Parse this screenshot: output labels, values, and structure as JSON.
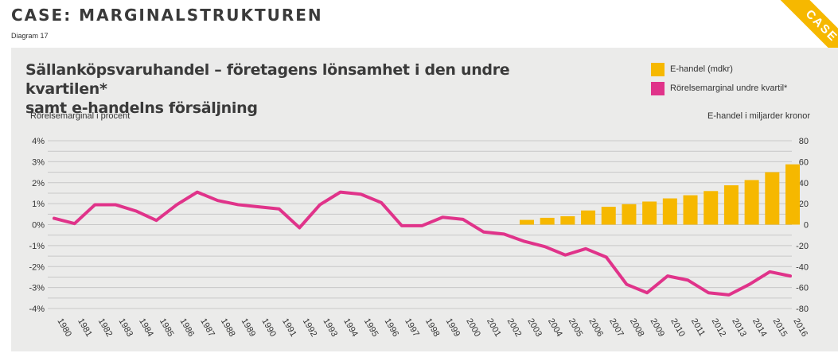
{
  "header": {
    "title": "CASE: MARGINALSTRUKTUREN",
    "diagram_label": "Diagram 17",
    "corner_badge": "CASE"
  },
  "colors": {
    "bar": "#f6b800",
    "line": "#e0338a",
    "grid": "#c8c8c8",
    "panel": "#ebebea",
    "badge": "#f6b800"
  },
  "chart_data": {
    "type": "bar+line",
    "title_line1": "Sällanköpsvaruhandel – företagens lönsamhet i den undre kvartilen*",
    "title_line2": "samt e-handelns försäljning",
    "ylabel_left": "Rörelsemarginal i procent",
    "ylabel_right": "E-handel i miljarder kronor",
    "ylim_left": [
      -4,
      4
    ],
    "ylim_right": [
      -80,
      80
    ],
    "yticks_left": [
      "4%",
      "3%",
      "2%",
      "1%",
      "0%",
      "-1%",
      "-2%",
      "-3%",
      "-4%"
    ],
    "yticks_right": [
      "80",
      "60",
      "40",
      "20",
      "0",
      "-20",
      "-40",
      "-60",
      "-80"
    ],
    "categories": [
      "1980",
      "1981",
      "1982",
      "1983",
      "1984",
      "1985",
      "1986",
      "1987",
      "1988",
      "1989",
      "1990",
      "1991",
      "1992",
      "1993",
      "1994",
      "1995",
      "1996",
      "1997",
      "1998",
      "1999",
      "2000",
      "2001",
      "2002",
      "2003",
      "2004",
      "2005",
      "2006",
      "2007",
      "2008",
      "2009",
      "2010",
      "2011",
      "2012",
      "2013",
      "2014",
      "2015",
      "2016"
    ],
    "series": [
      {
        "name": "E-handel (mdkr)",
        "type": "bar",
        "axis": "right",
        "values": [
          null,
          null,
          null,
          null,
          null,
          null,
          null,
          null,
          null,
          null,
          null,
          null,
          null,
          null,
          null,
          null,
          null,
          null,
          null,
          null,
          null,
          null,
          null,
          4.5,
          6.5,
          8,
          13.5,
          17,
          19.5,
          22,
          25,
          28,
          32,
          37.5,
          42.5,
          50,
          57.5
        ]
      },
      {
        "name": "Rörelsemarginal undre kvartil*",
        "type": "line",
        "axis": "left",
        "values": [
          0.3,
          0.05,
          0.95,
          0.95,
          0.65,
          0.2,
          0.95,
          1.55,
          1.15,
          0.95,
          0.85,
          0.75,
          -0.15,
          0.95,
          1.55,
          1.45,
          1.05,
          -0.05,
          -0.05,
          0.35,
          0.25,
          -0.35,
          -0.45,
          -0.8,
          -1.05,
          -1.45,
          -1.15,
          -1.55,
          -2.85,
          -3.25,
          -2.45,
          -2.65,
          -3.25,
          -3.35,
          -2.85,
          -2.25,
          -2.45
        ]
      }
    ],
    "legend": [
      "E-handel (mdkr)",
      "Rörelsemarginal undre kvartil*"
    ]
  }
}
